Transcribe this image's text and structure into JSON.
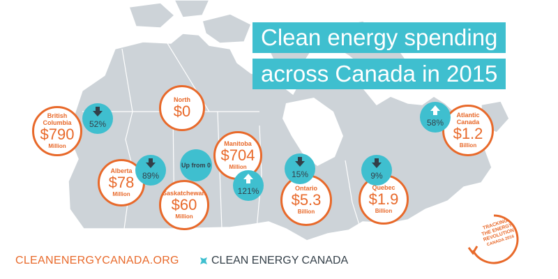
{
  "title_line1": "Clean energy spending",
  "title_line2": "across Canada in 2015",
  "colors": {
    "map": "#cdd3d8",
    "border": "#ffffff",
    "accent_orange": "#e8692a",
    "accent_teal": "#3fbfcf",
    "text_dark": "#333f48"
  },
  "regions": [
    {
      "name": "North",
      "amount": "$0",
      "unit": ""
    },
    {
      "name": "British Columbia",
      "amount": "$790",
      "unit": "Million",
      "change": "52%",
      "direction": "down"
    },
    {
      "name": "Alberta",
      "amount": "$78",
      "unit": "Million",
      "change": "89%",
      "direction": "down"
    },
    {
      "name": "Saskatchewan",
      "amount": "$60",
      "unit": "Million",
      "change_note": "Up from 0"
    },
    {
      "name": "Manitoba",
      "amount": "$704",
      "unit": "Million",
      "change": "121%",
      "direction": "up"
    },
    {
      "name": "Ontario",
      "amount": "$5.3",
      "unit": "Billion",
      "change": "15%",
      "direction": "down"
    },
    {
      "name": "Quebec",
      "amount": "$1.9",
      "unit": "Billion",
      "change": "9%",
      "direction": "down"
    },
    {
      "name": "Atlantic Canada",
      "amount": "$1.2",
      "unit": "Billion",
      "change": "58%",
      "direction": "up"
    }
  ],
  "stamp": {
    "line1": "TRACKING",
    "line2": "THE ENERGY",
    "line3": "REVOLUTION",
    "line4": "CANADA 2016"
  },
  "footer": {
    "url": "CLEANENERGYCANADA.ORG",
    "brand": "CLEAN ENERGY CANADA"
  }
}
